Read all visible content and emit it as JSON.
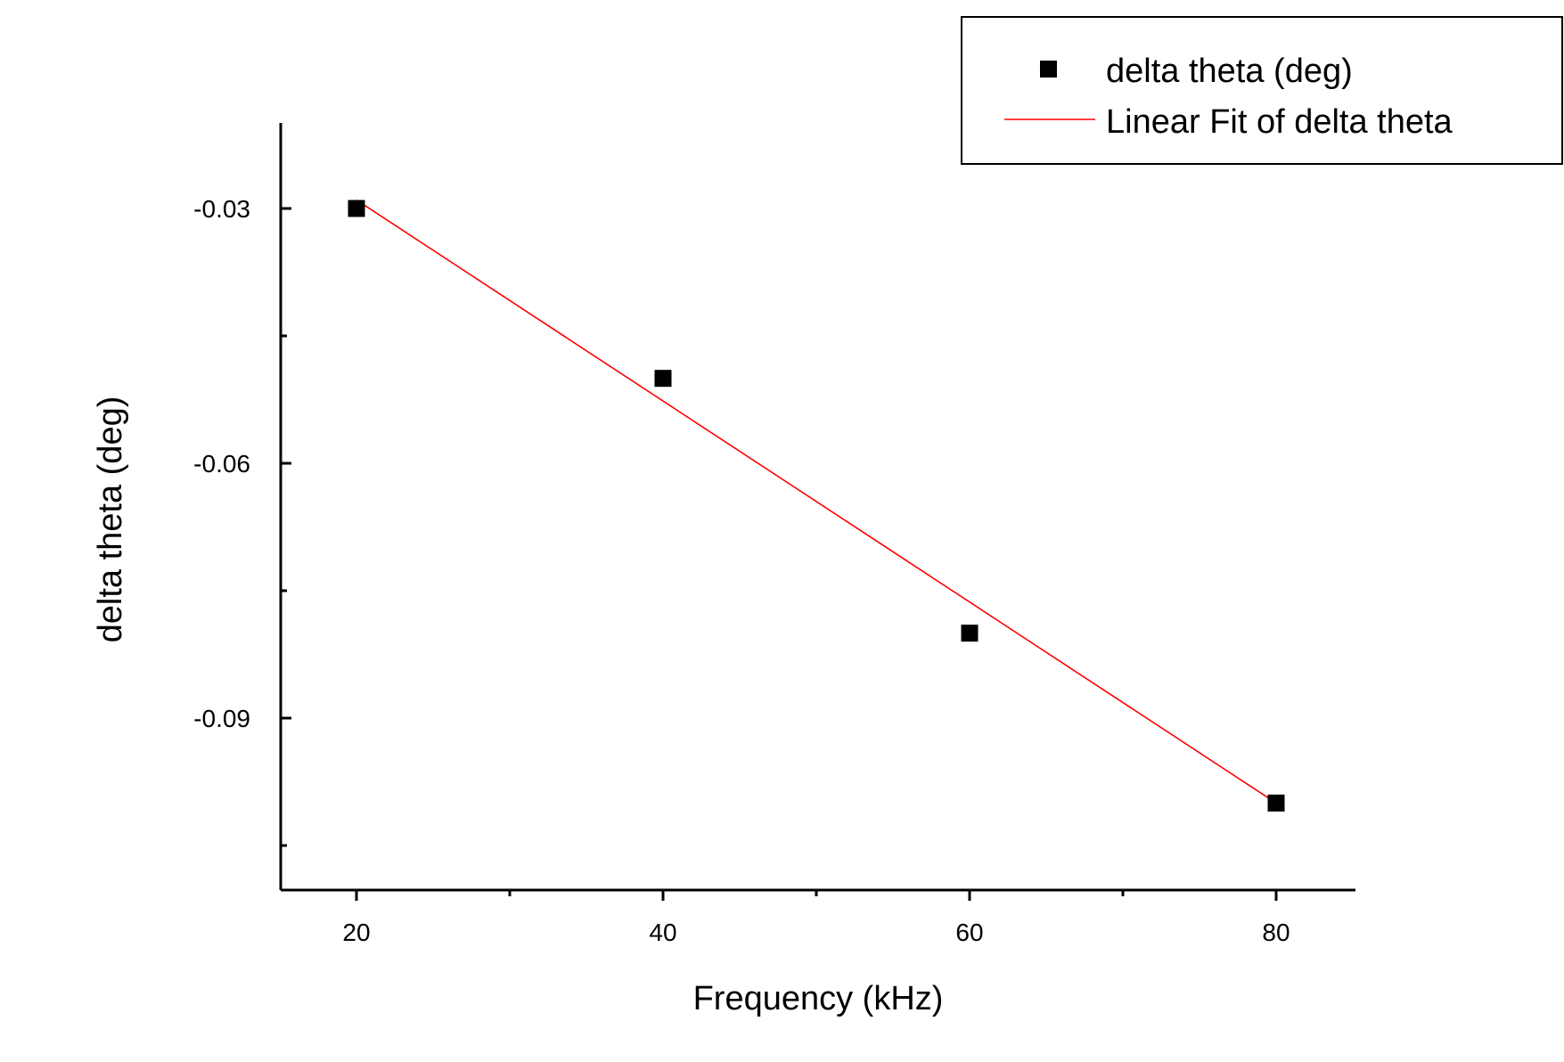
{
  "chart_data": {
    "type": "scatter",
    "xlabel": "Frequency (kHz)",
    "ylabel": "delta theta (deg)",
    "xlim": [
      15,
      85
    ],
    "ylim": [
      -0.11,
      -0.02
    ],
    "xticks": [
      20,
      40,
      60,
      80
    ],
    "yticks": [
      -0.03,
      -0.06,
      -0.09
    ],
    "xtick_labels": [
      "20",
      "40",
      "60",
      "80"
    ],
    "ytick_labels": [
      "-0.03",
      "-0.06",
      "-0.09"
    ],
    "x_minor_ticks": [
      30,
      50,
      70
    ],
    "y_minor_ticks": [
      -0.045,
      -0.075,
      -0.105
    ],
    "grid": false,
    "legend_position": "top-right",
    "series": [
      {
        "name": "delta theta (deg)",
        "kind": "scatter",
        "marker": "square",
        "color": "#000000",
        "x": [
          20,
          40,
          60,
          80
        ],
        "y": [
          -0.03,
          -0.05,
          -0.08,
          -0.1
        ]
      },
      {
        "name": "Linear Fit of delta theta",
        "kind": "line",
        "color": "#ff0000",
        "x": [
          20,
          80
        ],
        "y": [
          -0.029,
          -0.1
        ]
      }
    ]
  }
}
